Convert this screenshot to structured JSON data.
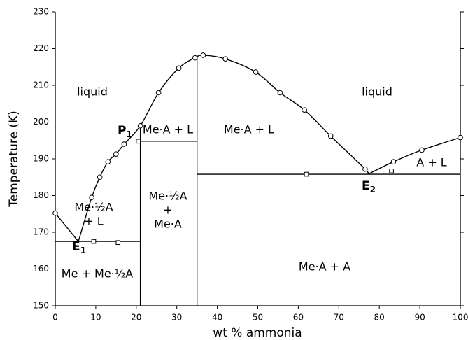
{
  "chart_data": {
    "type": "phase-diagram",
    "x_label": "wt % ammonia",
    "y_label": "Temperature (K)",
    "xlim": [
      0,
      100
    ],
    "ylim": [
      150,
      230
    ],
    "xticks": [
      0,
      10,
      20,
      30,
      40,
      50,
      60,
      70,
      80,
      90,
      100
    ],
    "yticks": [
      150,
      160,
      170,
      180,
      190,
      200,
      210,
      220,
      230
    ],
    "color": "#000000",
    "circles": {
      "x": [
        0,
        9,
        11,
        13,
        15,
        17,
        21,
        25.5,
        30.5,
        34.5,
        36.5,
        42,
        49.5,
        55.5,
        61.5,
        68,
        76.5,
        83.5,
        90.5,
        100
      ],
      "y": [
        175.2,
        179.5,
        185,
        189.2,
        191.3,
        194,
        199,
        208,
        214.7,
        217.5,
        218.2,
        217.2,
        213.6,
        208,
        203.3,
        196.2,
        187.2,
        189.2,
        192.4,
        195.8
      ]
    },
    "squares": {
      "x": [
        9.5,
        15.5,
        20.5,
        62,
        83
      ],
      "y": [
        167.5,
        167.2,
        194.8,
        185.8,
        186.7
      ]
    },
    "curves": [
      {
        "x": [
          0,
          5.7
        ],
        "y": [
          175.2,
          167.5
        ]
      },
      {
        "x": [
          5.7,
          9,
          11,
          13,
          15,
          17,
          21,
          25.5,
          30.5,
          34.5,
          36.5,
          42,
          49.5,
          55.5,
          61.5,
          68,
          76.5,
          77.2
        ],
        "y": [
          167.5,
          179.5,
          185,
          189.2,
          191.3,
          194,
          199,
          208,
          214.7,
          217.5,
          218.2,
          217.2,
          213.6,
          208,
          203.3,
          196.2,
          187.2,
          185.8
        ]
      },
      {
        "x": [
          77.2,
          83.5,
          90.5,
          100
        ],
        "y": [
          185.8,
          189.2,
          192.4,
          195.8
        ]
      }
    ],
    "tie_lines": [
      {
        "x": [
          0,
          21
        ],
        "y": [
          167.5,
          167.5
        ]
      },
      {
        "x": [
          21,
          35
        ],
        "y": [
          194.8,
          194.8
        ]
      },
      {
        "x": [
          35,
          100
        ],
        "y": [
          185.8,
          185.8
        ]
      },
      {
        "x": [
          21,
          21
        ],
        "y": [
          150,
          199
        ]
      },
      {
        "x": [
          35,
          35
        ],
        "y": [
          150,
          218
        ]
      }
    ],
    "regions": [
      {
        "lines": [
          "liquid"
        ]
      },
      {
        "lines": [
          "liquid"
        ]
      },
      {
        "lines": [
          "Me·A + L"
        ]
      },
      {
        "lines": [
          "Me·A + L"
        ]
      },
      {
        "lines": [
          "A + L"
        ]
      },
      {
        "lines": [
          "Me·½A",
          "+ L"
        ]
      },
      {
        "lines": [
          "Me·½A",
          "+",
          "Me·A"
        ]
      },
      {
        "lines": [
          "Me·A + A"
        ]
      },
      {
        "lines": [
          "Me + Me·½A"
        ]
      }
    ],
    "points": [
      {
        "text": "P",
        "sub": "1"
      },
      {
        "text": "E",
        "sub": "1"
      },
      {
        "text": "E",
        "sub": "2"
      }
    ]
  }
}
